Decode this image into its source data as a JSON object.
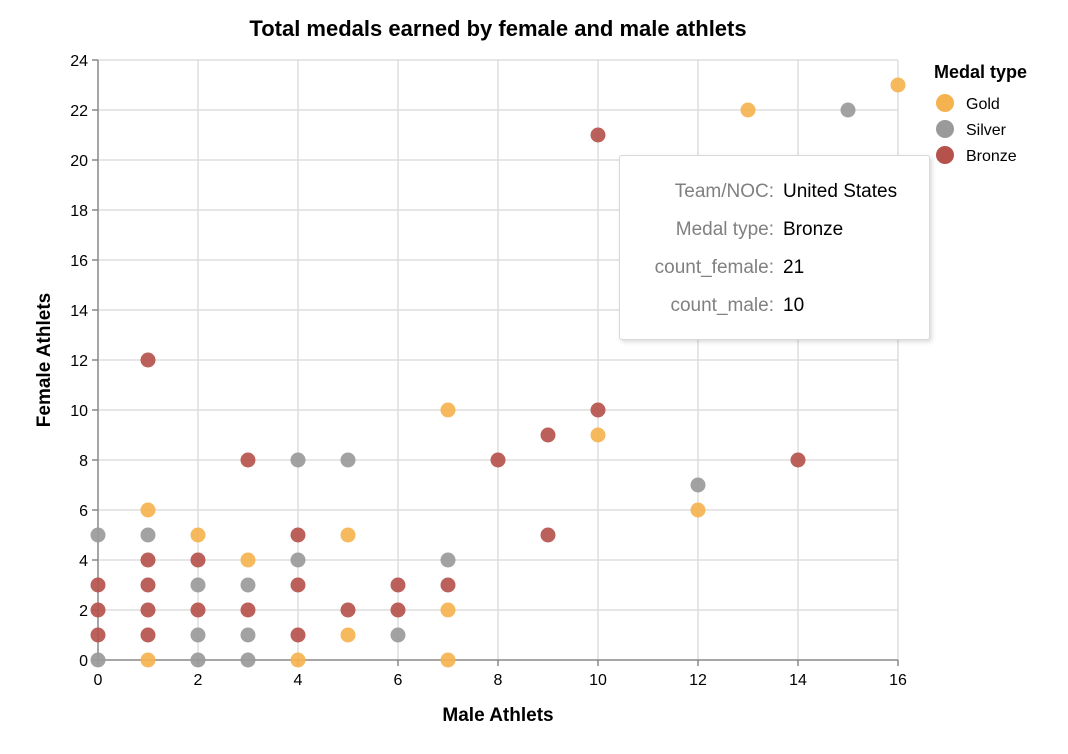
{
  "chart_data": {
    "type": "scatter",
    "title": "Total medals earned by female and male athlets",
    "xlabel": "Male Athlets",
    "ylabel": "Female Athlets",
    "xlim": [
      0,
      16
    ],
    "ylim": [
      0,
      24
    ],
    "x_ticks": [
      0,
      2,
      4,
      6,
      8,
      10,
      12,
      14,
      16
    ],
    "y_ticks": [
      0,
      2,
      4,
      6,
      8,
      10,
      12,
      14,
      16,
      18,
      20,
      22,
      24
    ],
    "grid": true,
    "legend": {
      "title": "Medal type",
      "position": "right"
    },
    "series": [
      {
        "name": "Gold",
        "color": "#f5b350",
        "points": [
          {
            "x": 16,
            "y": 23
          },
          {
            "x": 13,
            "y": 22
          },
          {
            "x": 7,
            "y": 10
          },
          {
            "x": 10,
            "y": 9
          },
          {
            "x": 12,
            "y": 6
          },
          {
            "x": 1,
            "y": 6
          },
          {
            "x": 2,
            "y": 5
          },
          {
            "x": 5,
            "y": 5
          },
          {
            "x": 3,
            "y": 4
          },
          {
            "x": 7,
            "y": 2
          },
          {
            "x": 5,
            "y": 1
          },
          {
            "x": 1,
            "y": 0
          },
          {
            "x": 4,
            "y": 0
          },
          {
            "x": 7,
            "y": 0
          }
        ]
      },
      {
        "name": "Silver",
        "color": "#9a9a9a",
        "points": [
          {
            "x": 15,
            "y": 22
          },
          {
            "x": 12,
            "y": 7
          },
          {
            "x": 4,
            "y": 8
          },
          {
            "x": 5,
            "y": 8
          },
          {
            "x": 0,
            "y": 5
          },
          {
            "x": 1,
            "y": 5
          },
          {
            "x": 4,
            "y": 4
          },
          {
            "x": 7,
            "y": 4
          },
          {
            "x": 2,
            "y": 3
          },
          {
            "x": 3,
            "y": 3
          },
          {
            "x": 2,
            "y": 1
          },
          {
            "x": 3,
            "y": 1
          },
          {
            "x": 6,
            "y": 1
          },
          {
            "x": 0,
            "y": 0
          },
          {
            "x": 2,
            "y": 0
          },
          {
            "x": 3,
            "y": 0
          }
        ]
      },
      {
        "name": "Bronze",
        "color": "#b5524c",
        "points": [
          {
            "x": 10,
            "y": 21
          },
          {
            "x": 1,
            "y": 12
          },
          {
            "x": 10,
            "y": 10
          },
          {
            "x": 9,
            "y": 9
          },
          {
            "x": 3,
            "y": 8
          },
          {
            "x": 8,
            "y": 8
          },
          {
            "x": 14,
            "y": 8
          },
          {
            "x": 4,
            "y": 5
          },
          {
            "x": 9,
            "y": 5
          },
          {
            "x": 1,
            "y": 4
          },
          {
            "x": 2,
            "y": 4
          },
          {
            "x": 0,
            "y": 3
          },
          {
            "x": 1,
            "y": 3
          },
          {
            "x": 4,
            "y": 3
          },
          {
            "x": 6,
            "y": 3
          },
          {
            "x": 7,
            "y": 3
          },
          {
            "x": 0,
            "y": 2
          },
          {
            "x": 1,
            "y": 2
          },
          {
            "x": 2,
            "y": 2
          },
          {
            "x": 3,
            "y": 2
          },
          {
            "x": 5,
            "y": 2
          },
          {
            "x": 6,
            "y": 2
          },
          {
            "x": 0,
            "y": 1
          },
          {
            "x": 1,
            "y": 1
          },
          {
            "x": 4,
            "y": 1
          }
        ]
      }
    ]
  },
  "tooltip": {
    "rows": [
      {
        "key": "Team/NOC:",
        "value": "United States"
      },
      {
        "key": "Medal type:",
        "value": "Bronze"
      },
      {
        "key": "count_female:",
        "value": "21"
      },
      {
        "key": "count_male:",
        "value": "10"
      }
    ]
  }
}
